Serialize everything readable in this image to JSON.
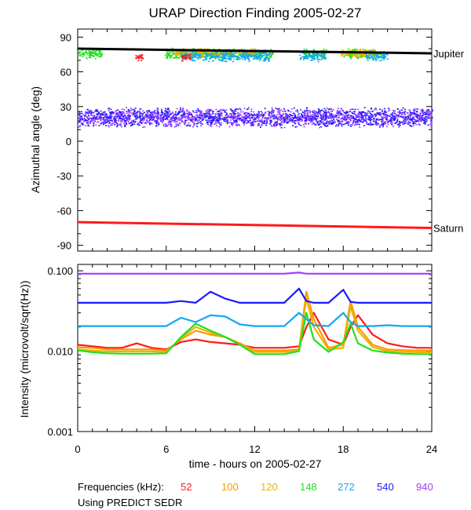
{
  "chart_data": [
    {
      "type": "scatter",
      "title": "URAP Direction Finding  2005-02-27",
      "ylabel": "Azimuthal angle (deg)",
      "ylim": [
        -95,
        97
      ],
      "xlim": [
        0,
        24
      ],
      "yticks": [
        90,
        60,
        30,
        0,
        -30,
        -60,
        -90
      ],
      "ytick_labels": [
        "90",
        "60",
        "30",
        "0",
        "-30",
        "-60",
        "-90"
      ],
      "grid": false,
      "reference_lines": [
        {
          "name": "Jupiter",
          "color": "#000000",
          "x": [
            0,
            24
          ],
          "y": [
            80,
            76
          ]
        },
        {
          "name": "Saturn",
          "color": "#ff1a1a",
          "x": [
            0,
            24
          ],
          "y": [
            -70,
            -75
          ]
        }
      ],
      "scatter_bands": [
        {
          "series": "540 & 940 kHz",
          "colors": [
            "#1a1aff",
            "#a040ff"
          ],
          "x_range": [
            0,
            24
          ],
          "y_center": 21,
          "y_spread": 9
        },
        {
          "series": "148 kHz",
          "color": "#21e021",
          "segments": [
            [
              0,
              1.6
            ],
            [
              5.9,
              13.2
            ],
            [
              15.3,
              16.8
            ],
            [
              18.0,
              20.5
            ]
          ],
          "y_center": 76,
          "y_spread": 5
        },
        {
          "series": "120 kHz",
          "color": "#e8b400",
          "segments": [
            [
              6.5,
              12.0
            ],
            [
              17.8,
              20.2
            ]
          ],
          "y_center": 77,
          "y_spread": 4
        },
        {
          "series": "272 kHz",
          "color": "#10a8f0",
          "segments": [
            [
              7.0,
              13.0
            ],
            [
              15.0,
              16.8
            ],
            [
              19.5,
              21.0
            ]
          ],
          "y_center": 74,
          "y_spread": 5
        },
        {
          "series": "52 kHz",
          "color": "#ff1a1a",
          "segments": [
            [
              3.9,
              4.4
            ],
            [
              7.0,
              7.6
            ]
          ],
          "y_center": 73,
          "y_spread": 3
        }
      ]
    },
    {
      "type": "line",
      "ylabel": "Intensity (microvolt/sqrt(Hz))",
      "yscale": "log",
      "ylim": [
        0.001,
        0.12
      ],
      "xlim": [
        0,
        24
      ],
      "yticks": [
        0.1,
        0.01,
        0.001
      ],
      "ytick_labels": [
        "0.100",
        "0.010",
        "0.001"
      ],
      "xlabel": "time - hours on 2005-02-27",
      "xticks": [
        0,
        6,
        12,
        18,
        24
      ],
      "xtick_labels": [
        "0",
        "6",
        "12",
        "18",
        "24"
      ],
      "x": [
        0,
        1,
        2,
        3,
        4,
        5,
        6,
        7,
        8,
        9,
        10,
        11,
        12,
        13,
        14,
        15,
        15.5,
        16,
        17,
        18,
        18.5,
        19,
        20,
        21,
        22,
        23,
        24
      ],
      "series": [
        {
          "name": "52",
          "color": "#ff1a1a",
          "values": [
            0.012,
            0.0115,
            0.011,
            0.011,
            0.0125,
            0.011,
            0.0105,
            0.013,
            0.014,
            0.013,
            0.0125,
            0.012,
            0.011,
            0.011,
            0.011,
            0.0115,
            0.02,
            0.03,
            0.014,
            0.012,
            0.02,
            0.028,
            0.016,
            0.0125,
            0.0115,
            0.011,
            0.011
          ]
        },
        {
          "name": "100",
          "color": "#ff9900",
          "values": [
            0.0112,
            0.011,
            0.0105,
            0.0105,
            0.0105,
            0.0105,
            0.0102,
            0.014,
            0.018,
            0.016,
            0.015,
            0.0125,
            0.0102,
            0.0102,
            0.0102,
            0.0105,
            0.055,
            0.025,
            0.011,
            0.012,
            0.042,
            0.02,
            0.012,
            0.0105,
            0.0103,
            0.0102,
            0.0102
          ]
        },
        {
          "name": "120",
          "color": "#e8b400",
          "values": [
            0.0105,
            0.0102,
            0.0099,
            0.0099,
            0.0099,
            0.0099,
            0.0098,
            0.0145,
            0.02,
            0.017,
            0.015,
            0.012,
            0.0098,
            0.0098,
            0.0098,
            0.0102,
            0.045,
            0.02,
            0.0105,
            0.011,
            0.036,
            0.018,
            0.0112,
            0.01,
            0.0098,
            0.0097,
            0.0097
          ]
        },
        {
          "name": "148",
          "color": "#21e021",
          "values": [
            0.0102,
            0.0097,
            0.0094,
            0.0093,
            0.0093,
            0.0093,
            0.0094,
            0.015,
            0.022,
            0.018,
            0.015,
            0.012,
            0.0092,
            0.0092,
            0.0092,
            0.01,
            0.03,
            0.014,
            0.0098,
            0.013,
            0.022,
            0.0125,
            0.0102,
            0.0096,
            0.0093,
            0.0092,
            0.0092
          ]
        },
        {
          "name": "272",
          "color": "#10a8f0",
          "values": [
            0.0205,
            0.0205,
            0.0205,
            0.0205,
            0.0205,
            0.0205,
            0.0205,
            0.026,
            0.023,
            0.028,
            0.027,
            0.0215,
            0.0205,
            0.0205,
            0.0205,
            0.03,
            0.025,
            0.021,
            0.0205,
            0.03,
            0.023,
            0.0205,
            0.0205,
            0.021,
            0.0205,
            0.0205,
            0.0205
          ]
        },
        {
          "name": "540",
          "color": "#1a1aff",
          "values": [
            0.04,
            0.04,
            0.04,
            0.04,
            0.04,
            0.04,
            0.04,
            0.042,
            0.04,
            0.055,
            0.045,
            0.04,
            0.04,
            0.04,
            0.04,
            0.06,
            0.042,
            0.04,
            0.04,
            0.058,
            0.041,
            0.04,
            0.04,
            0.04,
            0.04,
            0.04,
            0.04
          ]
        },
        {
          "name": "940",
          "color": "#a040ff",
          "values": [
            0.092,
            0.092,
            0.092,
            0.092,
            0.092,
            0.092,
            0.092,
            0.092,
            0.092,
            0.092,
            0.092,
            0.092,
            0.092,
            0.092,
            0.092,
            0.095,
            0.092,
            0.092,
            0.092,
            0.092,
            0.092,
            0.092,
            0.092,
            0.092,
            0.092,
            0.092,
            0.092
          ]
        }
      ]
    }
  ],
  "legend": {
    "prefix": "Frequencies (kHz):",
    "items": [
      {
        "label": "52",
        "color": "#ff1a1a"
      },
      {
        "label": "100",
        "color": "#ff9900"
      },
      {
        "label": "120",
        "color": "#e8b400"
      },
      {
        "label": "148",
        "color": "#21e021"
      },
      {
        "label": "272",
        "color": "#10a8f0"
      },
      {
        "label": "540",
        "color": "#1a1aff"
      },
      {
        "label": "940",
        "color": "#a040ff"
      }
    ]
  },
  "footer": "Using PREDICT SEDR"
}
